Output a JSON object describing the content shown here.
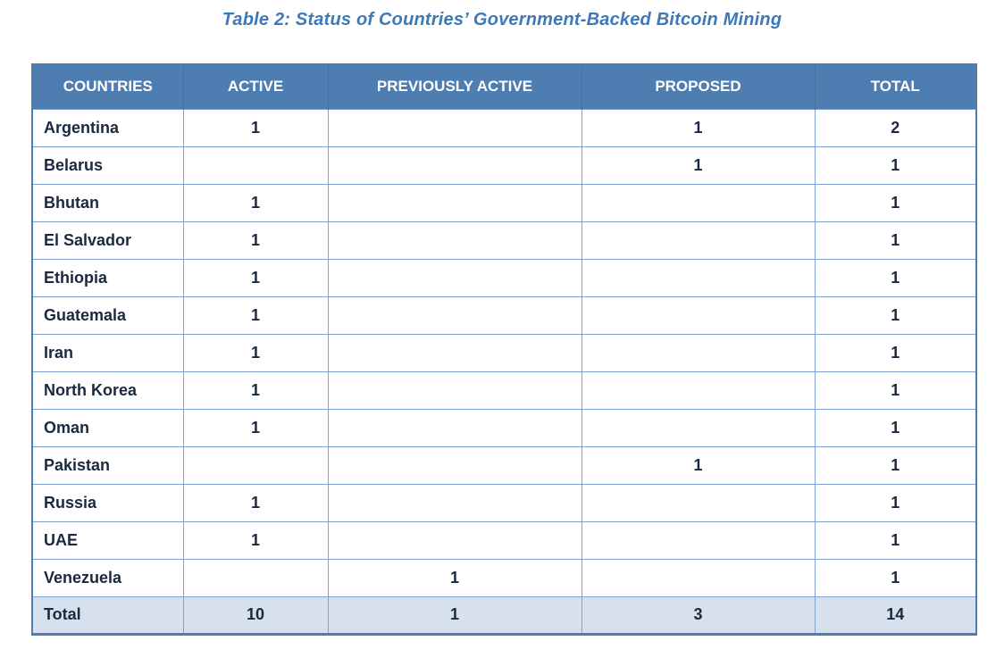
{
  "title": "Table 2: Status of Countries’ Government-Backed Bitcoin Mining",
  "colors": {
    "title": "#3c79b8",
    "header_bg": "#4e7db2",
    "header_text": "#ffffff",
    "cell_border": "#7da3d3",
    "outer_border": "#4e7db2",
    "total_row_bg": "#d7e1ed",
    "body_text": "#1b2940"
  },
  "table": {
    "headers": [
      "COUNTRIES",
      "ACTIVE",
      "PREVIOUSLY ACTIVE",
      "PROPOSED",
      "TOTAL"
    ],
    "rows": [
      {
        "country": "Argentina",
        "active": "1",
        "previously_active": "",
        "proposed": "1",
        "total": "2"
      },
      {
        "country": "Belarus",
        "active": "",
        "previously_active": "",
        "proposed": "1",
        "total": "1"
      },
      {
        "country": "Bhutan",
        "active": "1",
        "previously_active": "",
        "proposed": "",
        "total": "1"
      },
      {
        "country": "El Salvador",
        "active": "1",
        "previously_active": "",
        "proposed": "",
        "total": "1"
      },
      {
        "country": "Ethiopia",
        "active": "1",
        "previously_active": "",
        "proposed": "",
        "total": "1"
      },
      {
        "country": "Guatemala",
        "active": "1",
        "previously_active": "",
        "proposed": "",
        "total": "1"
      },
      {
        "country": "Iran",
        "active": "1",
        "previously_active": "",
        "proposed": "",
        "total": "1"
      },
      {
        "country": "North Korea",
        "active": "1",
        "previously_active": "",
        "proposed": "",
        "total": "1"
      },
      {
        "country": "Oman",
        "active": "1",
        "previously_active": "",
        "proposed": "",
        "total": "1"
      },
      {
        "country": "Pakistan",
        "active": "",
        "previously_active": "",
        "proposed": "1",
        "total": "1"
      },
      {
        "country": "Russia",
        "active": "1",
        "previously_active": "",
        "proposed": "",
        "total": "1"
      },
      {
        "country": "UAE",
        "active": "1",
        "previously_active": "",
        "proposed": "",
        "total": "1"
      },
      {
        "country": "Venezuela",
        "active": "",
        "previously_active": "1",
        "proposed": "",
        "total": "1"
      }
    ],
    "footer": {
      "label": "Total",
      "active": "10",
      "previously_active": "1",
      "proposed": "3",
      "total": "14"
    }
  }
}
